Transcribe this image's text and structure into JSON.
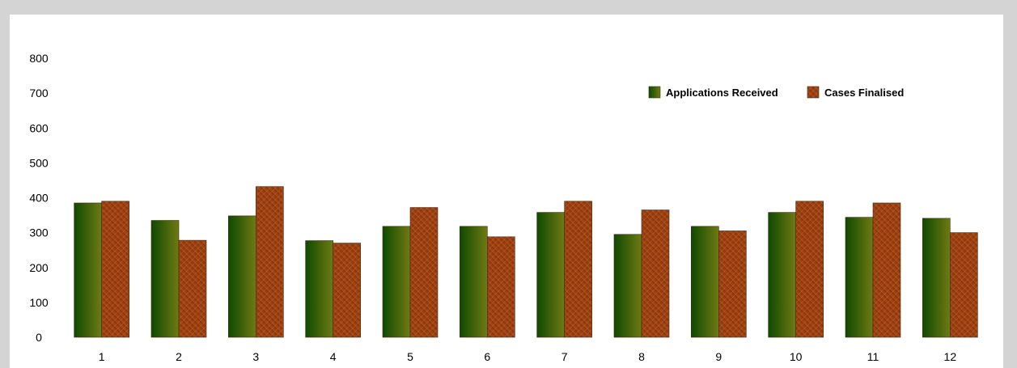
{
  "chart_data": {
    "type": "bar",
    "categories": [
      "1",
      "2",
      "3",
      "4",
      "5",
      "6",
      "7",
      "8",
      "9",
      "10",
      "11",
      "12"
    ],
    "series": [
      {
        "name": "Applications Received",
        "values": [
          385,
          335,
          348,
          277,
          318,
          318,
          358,
          295,
          318,
          358,
          344,
          341
        ],
        "color": "#4f6a10"
      },
      {
        "name": "Cases Finalised",
        "values": [
          390,
          278,
          432,
          270,
          372,
          288,
          390,
          365,
          305,
          390,
          385,
          300
        ],
        "color": "#a0441a"
      }
    ],
    "yticks": [
      "0",
      "100",
      "200",
      "300",
      "400",
      "500",
      "600",
      "700",
      "800"
    ],
    "ylim": [
      0,
      800
    ],
    "grid": false,
    "legend_position": "top-right"
  }
}
